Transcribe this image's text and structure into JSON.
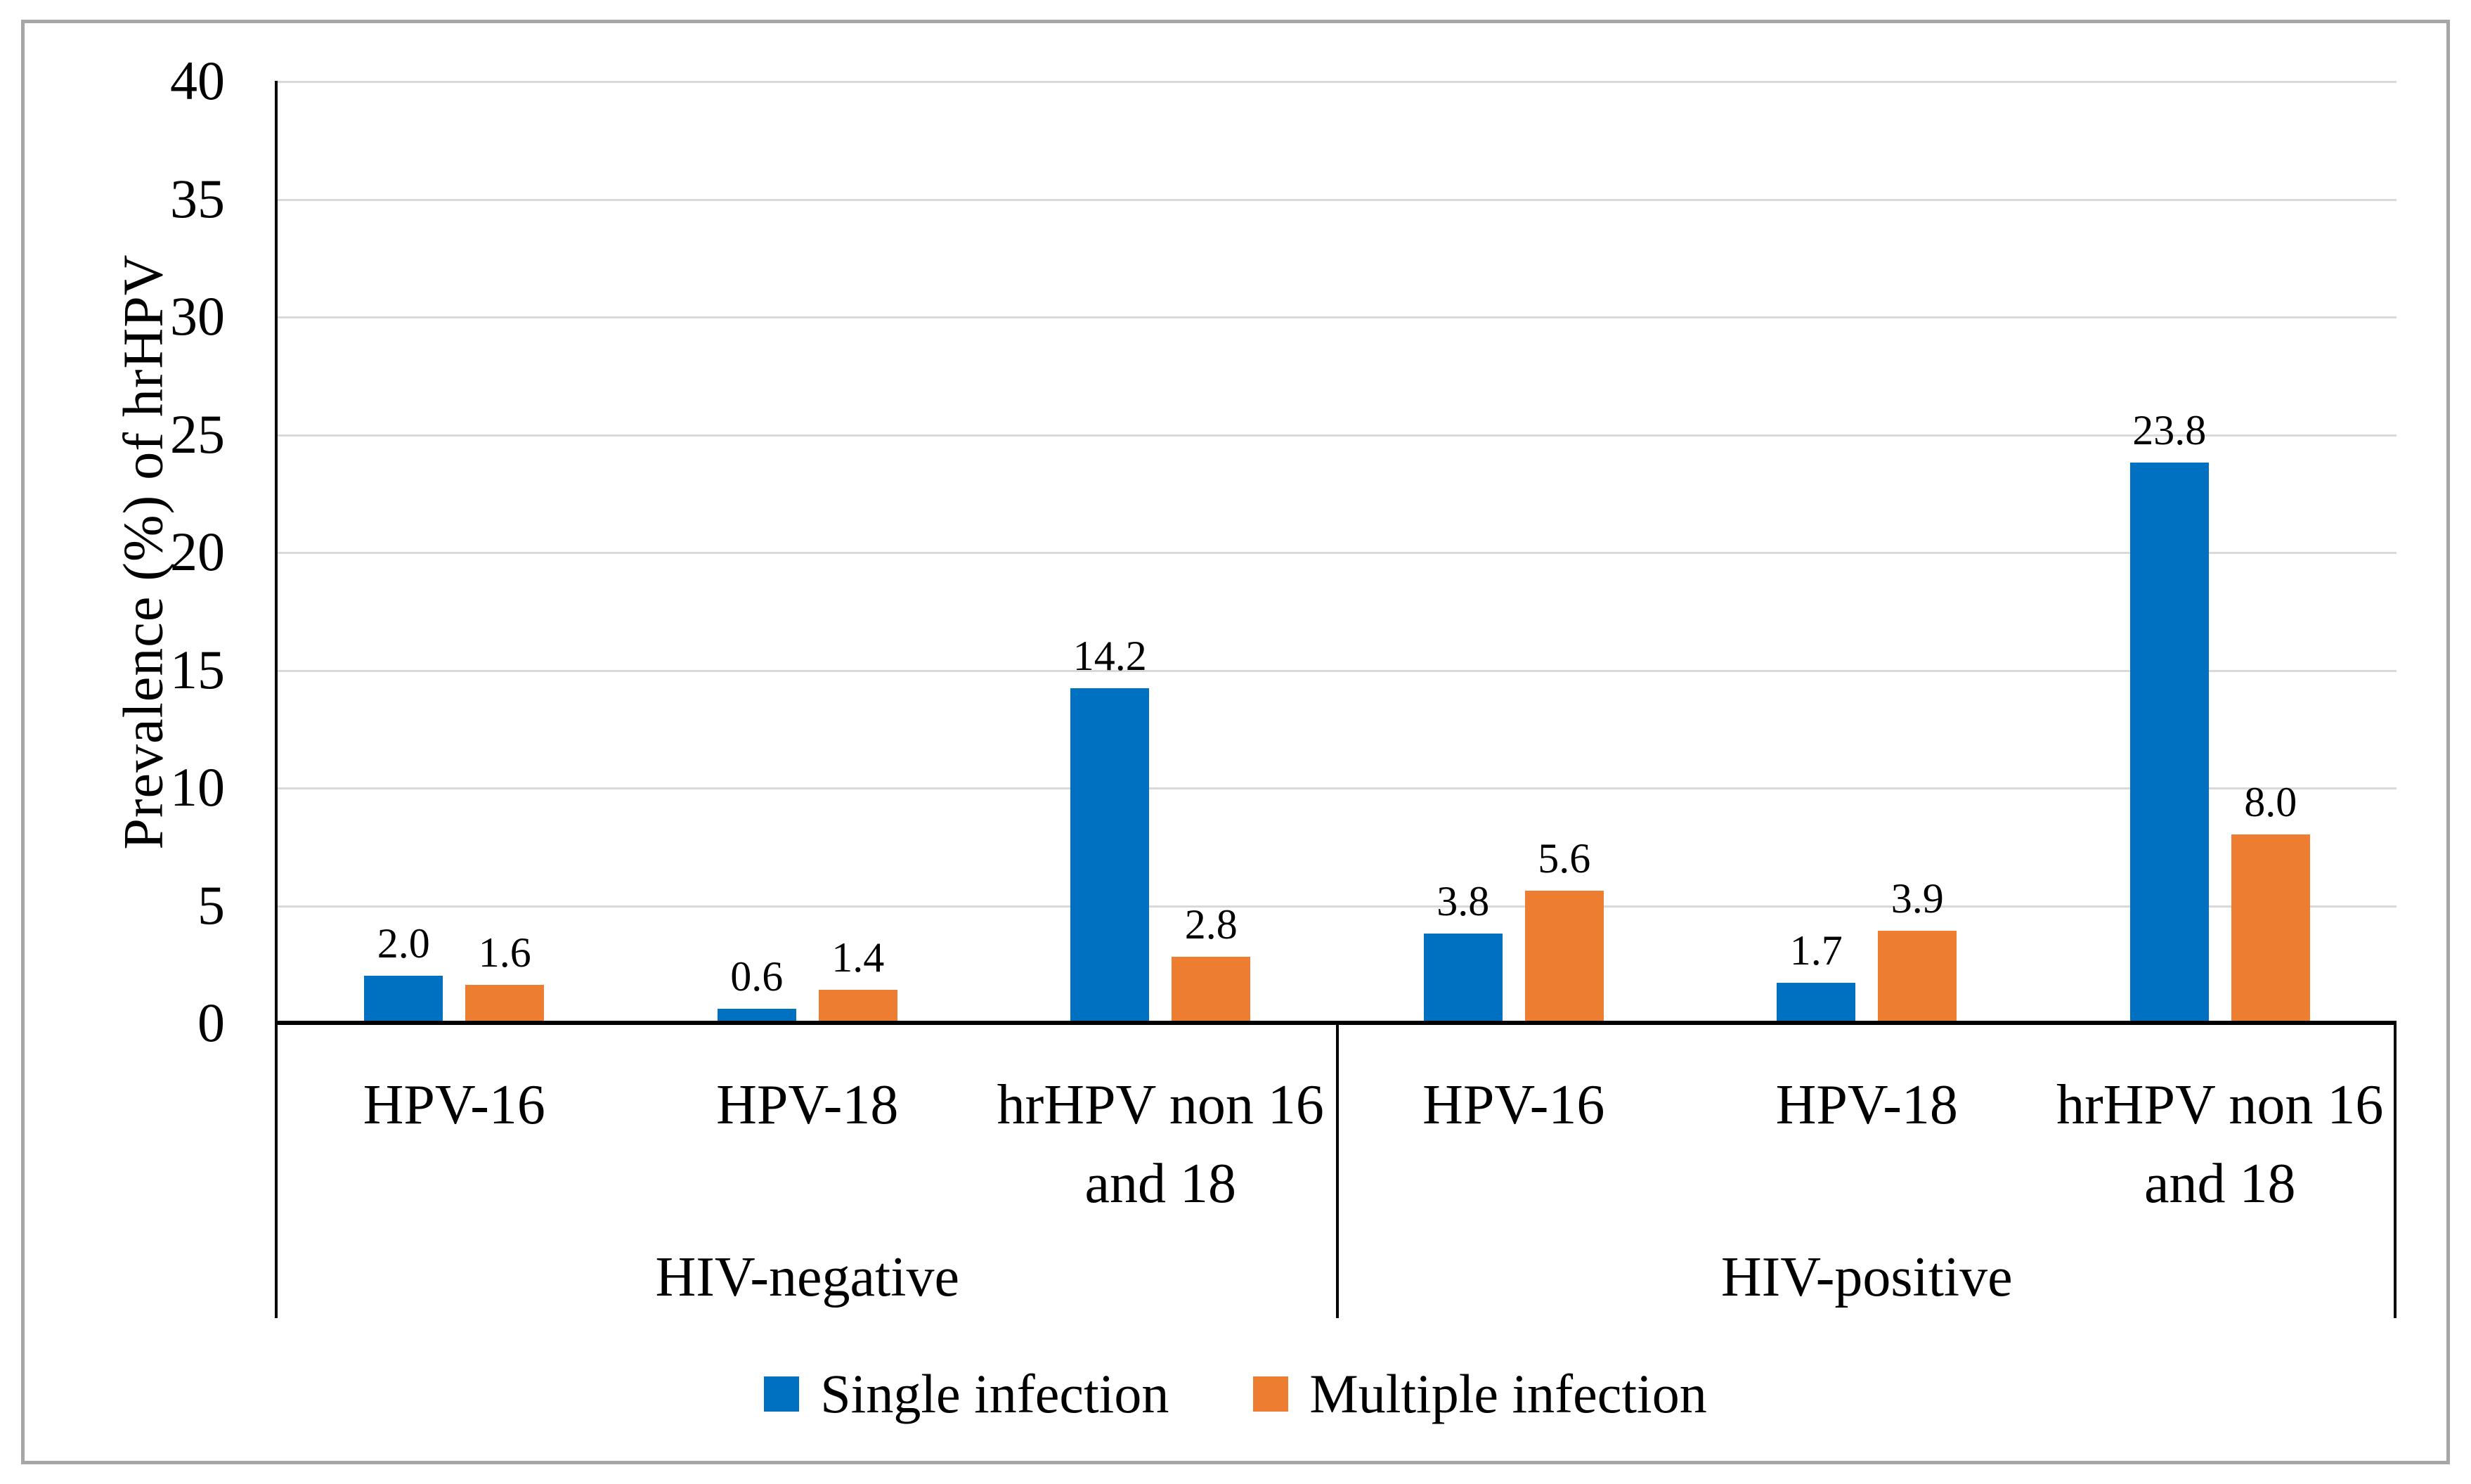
{
  "chart_data": {
    "type": "bar",
    "title": "",
    "ylabel": "Prevalence (%) of hrHPV",
    "xlabel": "",
    "ylim": [
      0,
      40
    ],
    "yticks": [
      0,
      5,
      10,
      15,
      20,
      25,
      30,
      35,
      40
    ],
    "grid": true,
    "legend_position": "bottom",
    "series": [
      {
        "name": "Single infection",
        "color": "#0070C0"
      },
      {
        "name": "Multiple infection",
        "color": "#ED7D31"
      }
    ],
    "groups": [
      {
        "label": "HIV-negative",
        "categories": [
          {
            "label": "HPV-16",
            "label_lines": [
              "HPV-16"
            ],
            "values": [
              2.0,
              1.6
            ],
            "value_labels": [
              "2.0",
              "1.6"
            ]
          },
          {
            "label": "HPV-18",
            "label_lines": [
              "HPV-18"
            ],
            "values": [
              0.6,
              1.4
            ],
            "value_labels": [
              "0.6",
              "1.4"
            ]
          },
          {
            "label": "hrHPV non 16 and 18",
            "label_lines": [
              "hrHPV non 16",
              "and 18"
            ],
            "values": [
              14.2,
              2.8
            ],
            "value_labels": [
              "14.2",
              "2.8"
            ]
          }
        ]
      },
      {
        "label": "HIV-positive",
        "categories": [
          {
            "label": "HPV-16",
            "label_lines": [
              "HPV-16"
            ],
            "values": [
              3.8,
              5.6
            ],
            "value_labels": [
              "3.8",
              "5.6"
            ]
          },
          {
            "label": "HPV-18",
            "label_lines": [
              "HPV-18"
            ],
            "values": [
              1.7,
              3.9
            ],
            "value_labels": [
              "1.7",
              "3.9"
            ]
          },
          {
            "label": "hrHPV non 16 and 18",
            "label_lines": [
              "hrHPV non 16",
              "and 18"
            ],
            "values": [
              23.8,
              8.0
            ],
            "value_labels": [
              "23.8",
              "8.0"
            ]
          }
        ]
      }
    ],
    "colors": {
      "gridline": "#D9D9D9",
      "axis": "#000000",
      "frame_border": "#A6A6A6",
      "background": "#FFFFFF"
    }
  }
}
